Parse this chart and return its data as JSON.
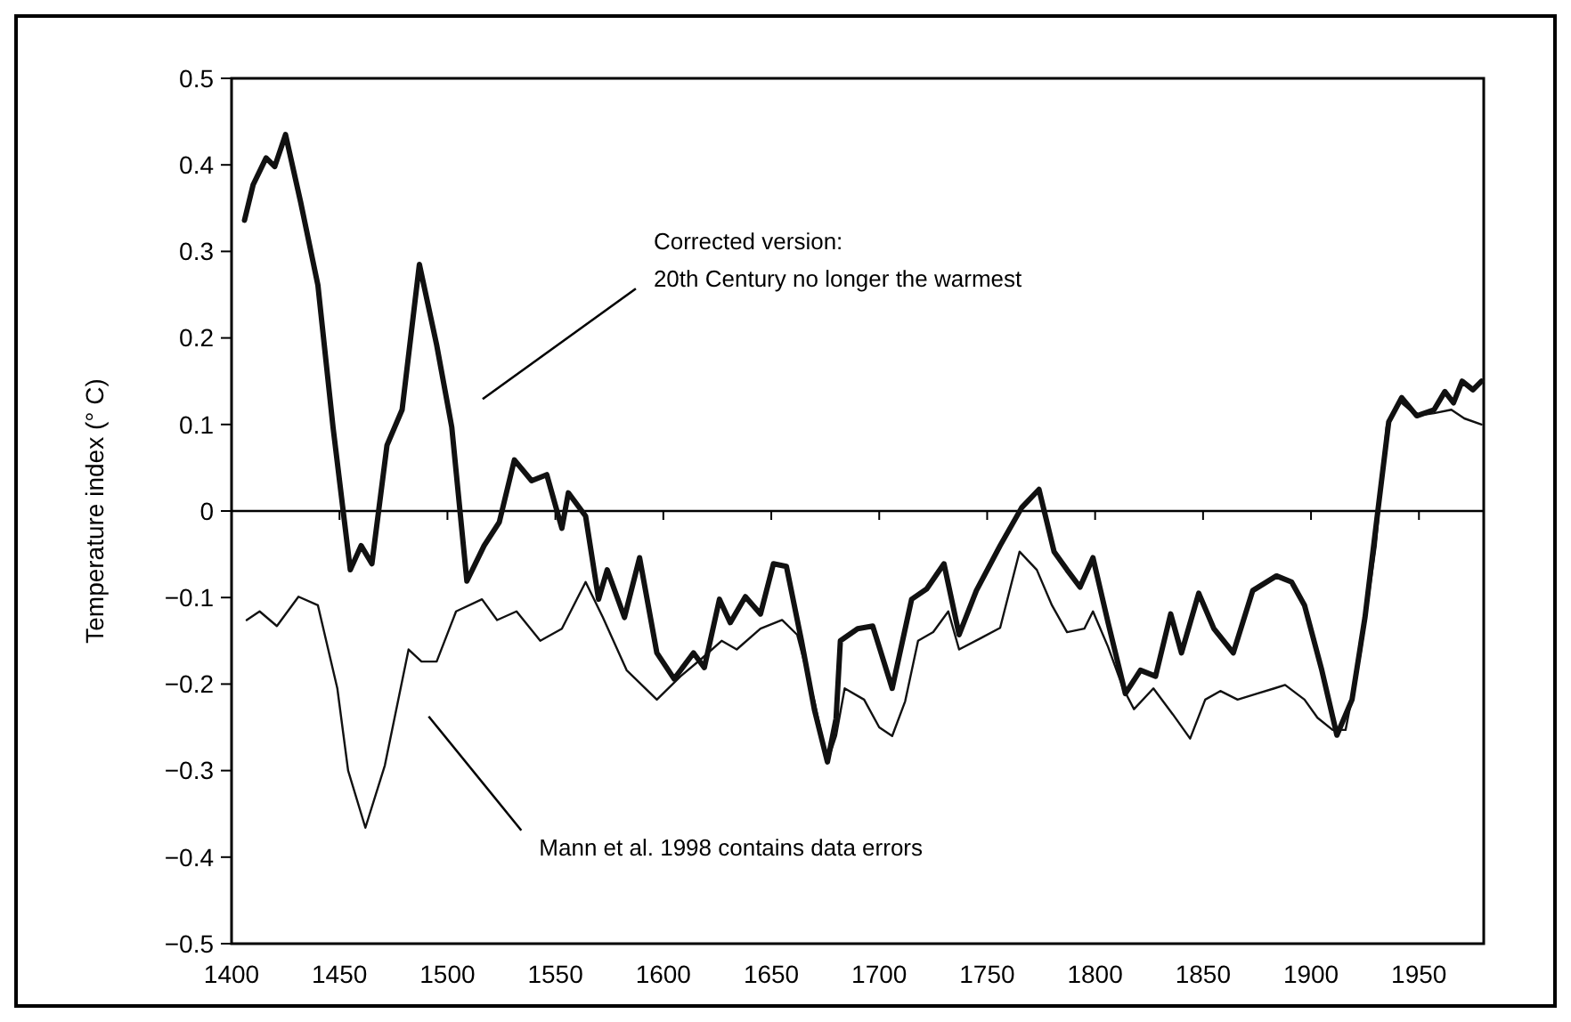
{
  "chart_data": {
    "type": "line",
    "ylabel": "Temperature index (° C)",
    "xlim": [
      1400,
      1980
    ],
    "xticks": [
      1400,
      1450,
      1500,
      1550,
      1600,
      1650,
      1700,
      1750,
      1800,
      1850,
      1900,
      1950
    ],
    "ylim": [
      -0.5,
      0.5
    ],
    "yticks": [
      {
        "value": -0.5,
        "label": "−0.5"
      },
      {
        "value": -0.4,
        "label": "−0.4"
      },
      {
        "value": -0.3,
        "label": "−0.3"
      },
      {
        "value": -0.2,
        "label": "−0.2"
      },
      {
        "value": -0.1,
        "label": "−0.1"
      },
      0,
      0.1,
      0.2,
      0.3,
      0.4,
      0.5
    ],
    "marker": "none",
    "line_style": "solid",
    "ref_lines": [
      {
        "axis": "y",
        "value": 0,
        "color": "#000000"
      }
    ],
    "annotations": [
      "Corrected version:\n20th Century no longer the warmest",
      "Mann et al. 1998 contains data errors"
    ],
    "series": [
      {
        "color": "#111111",
        "x": [
          1406,
          1410,
          1416,
          1420,
          1425,
          1432,
          1440,
          1447,
          1455,
          1460,
          1465,
          1472,
          1479,
          1487,
          1495,
          1502,
          1509,
          1517,
          1524,
          1531,
          1539,
          1546,
          1553,
          1556,
          1564,
          1570,
          1574,
          1582,
          1589,
          1597,
          1605,
          1614,
          1619,
          1626,
          1631,
          1638,
          1645,
          1651,
          1657,
          1664,
          1670,
          1676,
          1680,
          1682,
          1690,
          1697,
          1706,
          1715,
          1722,
          1730,
          1737,
          1745,
          1756,
          1766,
          1774,
          1781,
          1787,
          1793,
          1799,
          1806,
          1814,
          1821,
          1828,
          1835,
          1840,
          1848,
          1855,
          1864,
          1873,
          1884,
          1891,
          1897,
          1905,
          1912,
          1919,
          1925,
          1931,
          1936,
          1942,
          1949,
          1957,
          1962,
          1966,
          1970,
          1975,
          1979
        ],
        "values": [
          0.336,
          0.377,
          0.408,
          0.398,
          0.435,
          0.357,
          0.261,
          0.097,
          -0.068,
          -0.04,
          -0.061,
          0.076,
          0.117,
          0.285,
          0.192,
          0.097,
          -0.081,
          -0.04,
          -0.013,
          0.059,
          0.035,
          0.042,
          -0.02,
          0.021,
          -0.006,
          -0.102,
          -0.068,
          -0.123,
          -0.054,
          -0.164,
          -0.194,
          -0.164,
          -0.181,
          -0.102,
          -0.129,
          -0.099,
          -0.119,
          -0.061,
          -0.064,
          -0.15,
          -0.23,
          -0.29,
          -0.24,
          -0.15,
          -0.136,
          -0.133,
          -0.205,
          -0.102,
          -0.09,
          -0.061,
          -0.143,
          -0.092,
          -0.04,
          0.004,
          0.025,
          -0.047,
          -0.068,
          -0.088,
          -0.054,
          -0.129,
          -0.211,
          -0.184,
          -0.191,
          -0.119,
          -0.164,
          -0.095,
          -0.136,
          -0.164,
          -0.092,
          -0.075,
          -0.082,
          -0.109,
          -0.184,
          -0.259,
          -0.218,
          -0.123,
          0.001,
          0.103,
          0.131,
          0.11,
          0.117,
          0.138,
          0.125,
          0.15,
          0.14,
          0.15
        ]
      },
      {
        "color": "#111111",
        "x": [
          1407,
          1413,
          1421,
          1431,
          1440,
          1449,
          1454,
          1462,
          1471,
          1482,
          1488,
          1495,
          1504,
          1516,
          1523,
          1532,
          1543,
          1553,
          1564,
          1572,
          1583,
          1597,
          1608,
          1618,
          1627,
          1634,
          1645,
          1655,
          1662,
          1670,
          1676,
          1680,
          1684,
          1693,
          1700,
          1706,
          1712,
          1718,
          1725,
          1732,
          1737,
          1747,
          1756,
          1765,
          1773,
          1780,
          1787,
          1795,
          1799,
          1806,
          1813,
          1818,
          1827,
          1836,
          1844,
          1851,
          1858,
          1866,
          1875,
          1883,
          1888,
          1897,
          1903,
          1910,
          1916,
          1923,
          1930,
          1935,
          1941,
          1949,
          1957,
          1965,
          1971,
          1979
        ],
        "values": [
          -0.126,
          -0.116,
          -0.133,
          -0.099,
          -0.109,
          -0.205,
          -0.3,
          -0.366,
          -0.294,
          -0.16,
          -0.174,
          -0.174,
          -0.116,
          -0.102,
          -0.126,
          -0.116,
          -0.15,
          -0.136,
          -0.082,
          -0.123,
          -0.184,
          -0.218,
          -0.191,
          -0.17,
          -0.15,
          -0.16,
          -0.136,
          -0.126,
          -0.143,
          -0.22,
          -0.29,
          -0.26,
          -0.205,
          -0.218,
          -0.25,
          -0.26,
          -0.22,
          -0.15,
          -0.14,
          -0.116,
          -0.16,
          -0.147,
          -0.135,
          -0.047,
          -0.068,
          -0.109,
          -0.14,
          -0.136,
          -0.116,
          -0.157,
          -0.205,
          -0.229,
          -0.205,
          -0.235,
          -0.263,
          -0.218,
          -0.208,
          -0.218,
          -0.211,
          -0.205,
          -0.201,
          -0.218,
          -0.239,
          -0.253,
          -0.253,
          -0.164,
          -0.04,
          0.097,
          0.127,
          0.11,
          0.113,
          0.117,
          0.107,
          0.1
        ]
      }
    ]
  }
}
